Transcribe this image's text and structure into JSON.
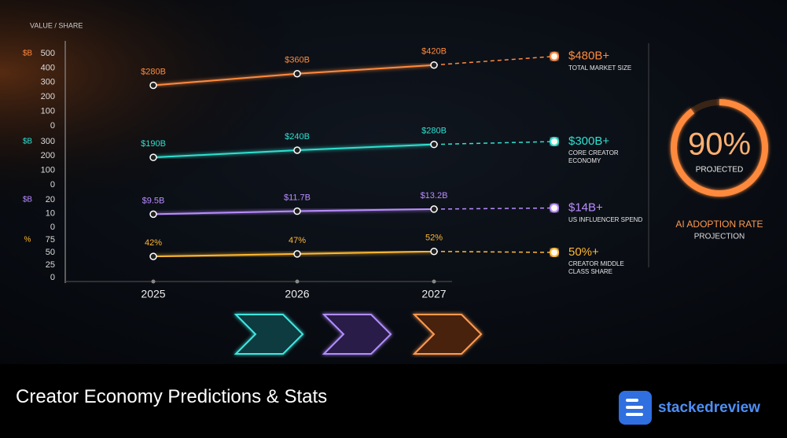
{
  "chart_data": {
    "type": "line",
    "y_title": "VALUE / SHARE",
    "categories": [
      "2025",
      "2026",
      "2027",
      null
    ],
    "series": [
      {
        "name": "TOTAL MARKET SIZE",
        "color": "#ff8a3d",
        "unit": "$B",
        "ylim": [
          0,
          500
        ],
        "yticks": [
          0,
          100,
          200,
          300,
          400,
          500
        ],
        "values": [
          280,
          360,
          420,
          480
        ],
        "value_labels": [
          "$280B",
          "$360B",
          "$420B",
          "$480B+"
        ]
      },
      {
        "name": "CORE CREATOR ECONOMY",
        "color": "#2fe0d0",
        "unit": "$B",
        "ylim": [
          0,
          300
        ],
        "yticks": [
          0,
          100,
          200,
          300
        ],
        "values": [
          190,
          240,
          280,
          300
        ],
        "value_labels": [
          "$190B",
          "$240B",
          "$280B",
          "$300B+"
        ]
      },
      {
        "name": "US INFLUENCER SPEND",
        "color": "#b98cff",
        "unit": "$B",
        "ylim": [
          0,
          20
        ],
        "yticks": [
          0,
          10,
          20
        ],
        "values": [
          9.5,
          11.7,
          13.2,
          14
        ],
        "value_labels": [
          "$9.5B",
          "$11.7B",
          "$13.2B",
          "$14B+"
        ]
      },
      {
        "name": "CREATOR MIDDLE CLASS SHARE",
        "color": "#ffb833",
        "unit": "%",
        "ylim": [
          0,
          75
        ],
        "yticks": [
          0,
          25,
          50,
          75
        ],
        "values": [
          42,
          47,
          52,
          50
        ],
        "value_labels": [
          "42%",
          "47%",
          "52%",
          "50%+"
        ]
      }
    ]
  },
  "gauge": {
    "value": 90,
    "value_label": "90%",
    "subtitle": "PROJECTED",
    "title": "AI ADOPTION RATE",
    "caption": "PROJECTION"
  },
  "footer": {
    "title": "Creator Economy Predictions & Stats",
    "brand": "stackedreview"
  }
}
